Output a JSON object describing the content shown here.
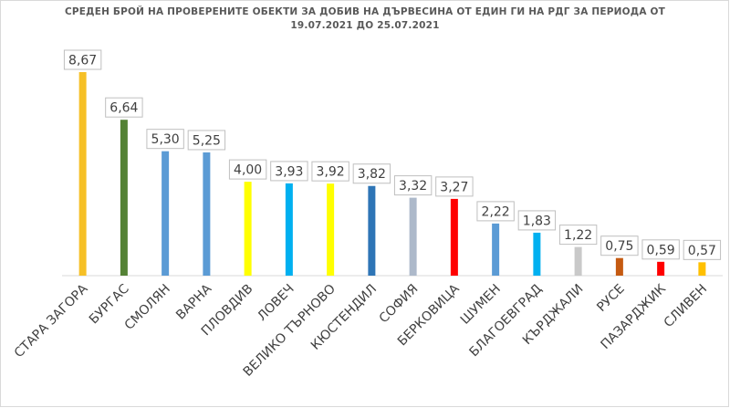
{
  "chart_data": {
    "type": "bar",
    "title": "СРЕДЕН БРОЙ НА ПРОВЕРЕНИТЕ ОБЕКТИ ЗА ДОБИВ НА ДЪРВЕСИНА ОТ ЕДИН ГИ НА РДГ ЗА ПЕРИОДА ОТ",
    "subtitle": "19.07.2021 ДО 25.07.2021",
    "categories": [
      "СТАРА ЗАГОРА",
      "БУРГАС",
      "СМОЛЯН",
      "ВАРНА",
      "ПЛОВДИВ",
      "ЛОВЕЧ",
      "ВЕЛИКО ТЪРНОВО",
      "КЮСТЕНДИЛ",
      "СОФИЯ",
      "БЕРКОВИЦА",
      "ШУМЕН",
      "БЛАГОЕВГРАД",
      "КЪРДЖАЛИ",
      "РУСЕ",
      "ПАЗАРДЖИК",
      "СЛИВЕН"
    ],
    "values": [
      8.67,
      6.64,
      5.3,
      5.25,
      4.0,
      3.93,
      3.92,
      3.82,
      3.32,
      3.27,
      2.22,
      1.83,
      1.22,
      0.75,
      0.59,
      0.57
    ],
    "value_labels": [
      "8,67",
      "6,64",
      "5,30",
      "5,25",
      "4,00",
      "3,93",
      "3,92",
      "3,82",
      "3,32",
      "3,27",
      "2,22",
      "1,83",
      "1,22",
      "0,75",
      "0,59",
      "0,57"
    ],
    "colors": [
      "#f6c026",
      "#548235",
      "#5b9bd5",
      "#5b9bd5",
      "#ffff00",
      "#00b0f0",
      "#ffff00",
      "#2e75b6",
      "#adb9ca",
      "#ff0000",
      "#5b9bd5",
      "#00b0f0",
      "#c9c9c9",
      "#c55a11",
      "#ff0000",
      "#ffc000"
    ],
    "xlabel": "",
    "ylabel": "",
    "ylim": [
      0,
      9
    ],
    "grid": false,
    "legend": "none"
  }
}
